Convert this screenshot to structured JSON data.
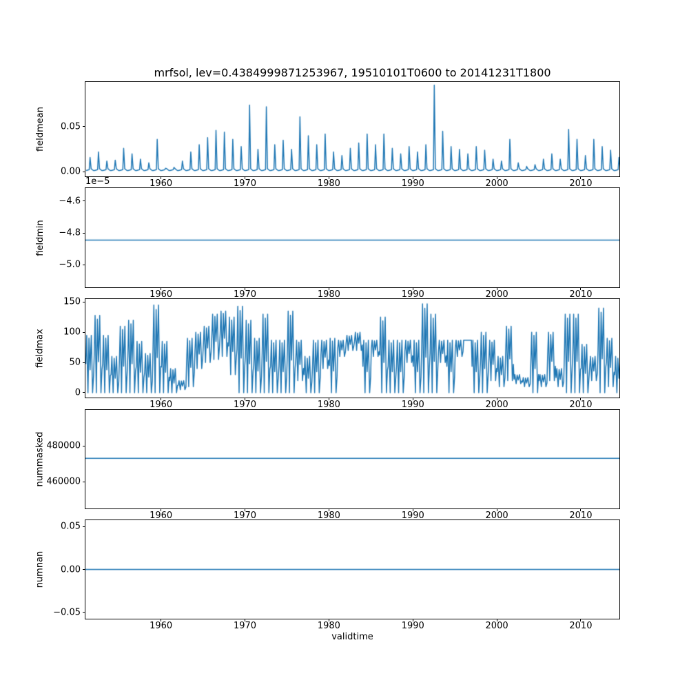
{
  "chart_data": {
    "type": "line",
    "title": "mrfsol, lev=0.4384999871253967, 19510101T0600 to 20141231T1800",
    "xlabel": "validtime",
    "line_color": "#1f77b4",
    "xlim": [
      1951,
      2014.6
    ],
    "start_year": 1951,
    "grid": false,
    "legend": "none",
    "xticks": [
      {
        "v": 1960,
        "label": "1960"
      },
      {
        "v": 1970,
        "label": "1970"
      },
      {
        "v": 1980,
        "label": "1980"
      },
      {
        "v": 1990,
        "label": "1990"
      },
      {
        "v": 2000,
        "label": "2000"
      },
      {
        "v": 2010,
        "label": "2010"
      }
    ],
    "panels": [
      {
        "name": "fieldmean",
        "ylabel": "fieldmean",
        "model": "annual-spikes",
        "ylim": [
          -0.005,
          0.0995
        ],
        "baseline": 0.0015,
        "yticks": [
          {
            "v": 0.0,
            "label": "0.00"
          },
          {
            "v": 0.05,
            "label": "0.05"
          }
        ],
        "yearly_peaks": [
          0.016,
          0.022,
          0.012,
          0.013,
          0.026,
          0.02,
          0.014,
          0.01,
          0.036,
          0.004,
          0.005,
          0.012,
          0.022,
          0.03,
          0.038,
          0.046,
          0.044,
          0.036,
          0.028,
          0.074,
          0.025,
          0.072,
          0.03,
          0.035,
          0.025,
          0.061,
          0.04,
          0.03,
          0.042,
          0.022,
          0.018,
          0.026,
          0.032,
          0.042,
          0.03,
          0.042,
          0.026,
          0.02,
          0.028,
          0.022,
          0.03,
          0.096,
          0.045,
          0.028,
          0.025,
          0.02,
          0.028,
          0.024,
          0.014,
          0.012,
          0.036,
          0.01,
          0.006,
          0.008,
          0.014,
          0.02,
          0.014,
          0.047,
          0.036,
          0.018,
          0.036,
          0.028,
          0.024,
          0.016
        ]
      },
      {
        "name": "fieldmin",
        "ylabel": "fieldmin",
        "model": "constant",
        "offset_text": "1e−5",
        "ylim": [
          -5.14e-05,
          -4.52e-05
        ],
        "value": -4.845e-05,
        "yticks": [
          {
            "v": -4.6e-05,
            "label": "−4.6"
          },
          {
            "v": -4.8e-05,
            "label": "−4.8"
          },
          {
            "v": -5e-05,
            "label": "−5.0"
          }
        ]
      },
      {
        "name": "fieldmax",
        "ylabel": "fieldmax",
        "model": "annual-band",
        "ylim": [
          -8,
          155
        ],
        "yticks": [
          {
            "v": 0,
            "label": "0"
          },
          {
            "v": 50,
            "label": "50"
          },
          {
            "v": 100,
            "label": "100"
          },
          {
            "v": 150,
            "label": "150"
          }
        ],
        "yearly_high": [
          95,
          128,
          95,
          60,
          110,
          120,
          85,
          65,
          145,
          85,
          40,
          20,
          90,
          100,
          110,
          130,
          135,
          125,
          143,
          120,
          90,
          130,
          87,
          87,
          135,
          87,
          60,
          87,
          87,
          90,
          87,
          95,
          100,
          87,
          87,
          125,
          87,
          87,
          87,
          87,
          147,
          130,
          87,
          87,
          87,
          87,
          87,
          100,
          87,
          60,
          110,
          30,
          25,
          100,
          30,
          100,
          40,
          130,
          130,
          80,
          60,
          140,
          90,
          60
        ],
        "yearly_low": [
          0,
          0,
          0,
          0,
          0,
          0,
          0,
          0,
          0,
          0,
          0,
          5,
          10,
          40,
          50,
          55,
          60,
          30,
          0,
          0,
          0,
          0,
          0,
          0,
          0,
          20,
          0,
          0,
          40,
          0,
          60,
          70,
          70,
          0,
          60,
          0,
          0,
          0,
          50,
          0,
          0,
          0,
          50,
          0,
          60,
          87,
          0,
          0,
          20,
          10,
          20,
          15,
          10,
          0,
          10,
          20,
          10,
          0,
          0,
          0,
          20,
          0,
          10,
          0
        ]
      },
      {
        "name": "nummasked",
        "ylabel": "nummasked",
        "model": "constant",
        "ylim": [
          445000,
          500000
        ],
        "value": 473000,
        "yticks": [
          {
            "v": 480000,
            "label": "480000"
          },
          {
            "v": 460000,
            "label": "460000"
          }
        ]
      },
      {
        "name": "numnan",
        "ylabel": "numnan",
        "model": "constant",
        "ylim": [
          -0.0575,
          0.0575
        ],
        "value": 0,
        "yticks": [
          {
            "v": 0.05,
            "label": "0.05"
          },
          {
            "v": 0.0,
            "label": "0.00"
          },
          {
            "v": -0.05,
            "label": "−0.05"
          }
        ]
      }
    ]
  }
}
